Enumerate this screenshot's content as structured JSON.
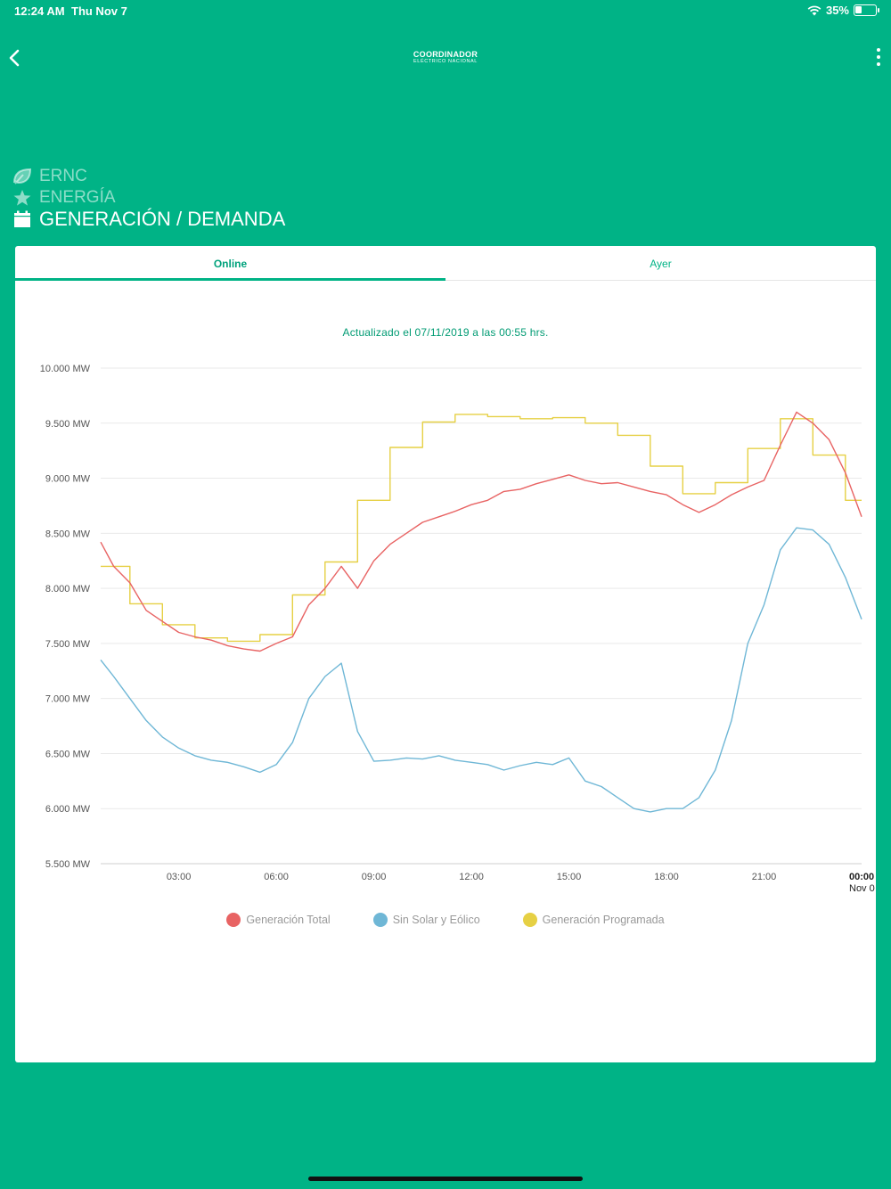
{
  "status_bar": {
    "time": "12:24 AM",
    "date": "Thu Nov 7",
    "battery": "35%",
    "battery_level": 0.35
  },
  "header": {
    "logo_main": "COORDINADOR",
    "logo_sub": "ELÉCTRICO NACIONAL",
    "back_icon": "chevron-left-icon",
    "more_icon": "more-vertical-icon"
  },
  "menu": [
    {
      "label": "ERNC",
      "icon": "leaf-icon"
    },
    {
      "label": "ENERGÍA",
      "icon": "star-icon"
    },
    {
      "label": "GENERACIÓN / DEMANDA",
      "icon": "calendar-icon"
    }
  ],
  "tabs": [
    {
      "label": "Online"
    },
    {
      "label": "Ayer"
    }
  ],
  "updated_text": "Actualizado el 07/11/2019 a las 00:55 hrs.",
  "colors": {
    "brand": "#00b386",
    "total": "#e86363",
    "sin_solar": "#6fb7d6",
    "programada": "#e6d044"
  },
  "chart_data": {
    "type": "line",
    "title": "",
    "xlabel": "",
    "ylabel": "",
    "ylim": [
      5500,
      10000
    ],
    "xlim": [
      0.6,
      24
    ],
    "y_ticks": [
      5500,
      6000,
      6500,
      7000,
      7500,
      8000,
      8500,
      9000,
      9500,
      10000
    ],
    "y_tick_labels": [
      "5.500 MW",
      "6.000 MW",
      "6.500 MW",
      "7.000 MW",
      "7.500 MW",
      "8.000 MW",
      "8.500 MW",
      "9.000 MW",
      "9.500 MW",
      "10.000 MW"
    ],
    "x_ticks": [
      3,
      6,
      9,
      12,
      15,
      18,
      21,
      24
    ],
    "x_tick_labels": [
      "03:00",
      "06:00",
      "09:00",
      "12:00",
      "15:00",
      "18:00",
      "21:00",
      "00:00"
    ],
    "x_tick_sublabel": "Nov 0",
    "grid": true,
    "legend_position": "bottom",
    "series": [
      {
        "name": "Generación Total",
        "color": "#e86363",
        "x": [
          0.6,
          1,
          1.5,
          2,
          2.5,
          3,
          3.5,
          4,
          4.5,
          5,
          5.5,
          6,
          6.5,
          7,
          7.5,
          8,
          8.5,
          9,
          9.5,
          10,
          10.5,
          11,
          11.5,
          12,
          12.5,
          13,
          13.5,
          14,
          14.5,
          15,
          15.5,
          16,
          16.5,
          17,
          17.5,
          18,
          18.5,
          19,
          19.5,
          20,
          20.5,
          21,
          21.5,
          22,
          22.5,
          23,
          23.5,
          24
        ],
        "y": [
          8420,
          8200,
          8050,
          7800,
          7700,
          7600,
          7560,
          7530,
          7480,
          7450,
          7430,
          7500,
          7560,
          7850,
          8000,
          8200,
          8000,
          8250,
          8400,
          8500,
          8600,
          8650,
          8700,
          8760,
          8800,
          8880,
          8900,
          8950,
          8990,
          9030,
          8980,
          8950,
          8960,
          8920,
          8880,
          8850,
          8760,
          8690,
          8760,
          8850,
          8920,
          8980,
          9300,
          9600,
          9500,
          9350,
          9050,
          8650
        ]
      },
      {
        "name": "Sin Solar y Eólico",
        "color": "#6fb7d6",
        "x": [
          0.6,
          1,
          1.5,
          2,
          2.5,
          3,
          3.5,
          4,
          4.5,
          5,
          5.5,
          6,
          6.5,
          7,
          7.5,
          8,
          8.5,
          9,
          9.5,
          10,
          10.5,
          11,
          11.5,
          12,
          12.5,
          13,
          13.5,
          14,
          14.5,
          15,
          15.5,
          16,
          16.5,
          17,
          17.5,
          18,
          18.5,
          19,
          19.5,
          20,
          20.5,
          21,
          21.5,
          22,
          22.5,
          23,
          23.5,
          24
        ],
        "y": [
          7350,
          7200,
          7000,
          6800,
          6650,
          6550,
          6480,
          6440,
          6420,
          6380,
          6330,
          6400,
          6600,
          7000,
          7200,
          7320,
          6700,
          6430,
          6440,
          6460,
          6450,
          6480,
          6440,
          6420,
          6400,
          6350,
          6390,
          6420,
          6400,
          6460,
          6250,
          6200,
          6100,
          6000,
          5970,
          6000,
          6000,
          6100,
          6350,
          6800,
          7500,
          7850,
          8350,
          8550,
          8530,
          8400,
          8100,
          7720
        ]
      },
      {
        "name": "Generación Programada",
        "color": "#e6d044",
        "x": [
          0.6,
          1.5,
          1.5,
          2.5,
          2.5,
          3.5,
          3.5,
          4.5,
          4.5,
          5.5,
          5.5,
          6.5,
          6.5,
          7.5,
          7.5,
          8.5,
          8.5,
          9.5,
          9.5,
          10.5,
          10.5,
          11.5,
          11.5,
          12.5,
          12.5,
          13.5,
          13.5,
          14.5,
          14.5,
          15.5,
          15.5,
          16.5,
          16.5,
          17.5,
          17.5,
          18.5,
          18.5,
          19.5,
          19.5,
          20.5,
          20.5,
          21.5,
          21.5,
          22.5,
          22.5,
          23.5,
          23.5,
          24
        ],
        "y": [
          8200,
          8200,
          7860,
          7860,
          7670,
          7670,
          7550,
          7550,
          7520,
          7520,
          7580,
          7580,
          7940,
          7940,
          8240,
          8240,
          8800,
          8800,
          9280,
          9280,
          9510,
          9510,
          9580,
          9580,
          9560,
          9560,
          9540,
          9540,
          9550,
          9550,
          9500,
          9500,
          9390,
          9390,
          9110,
          9110,
          8860,
          8860,
          8960,
          8960,
          9270,
          9270,
          9540,
          9540,
          9210,
          9210,
          8800,
          8800
        ]
      }
    ]
  }
}
